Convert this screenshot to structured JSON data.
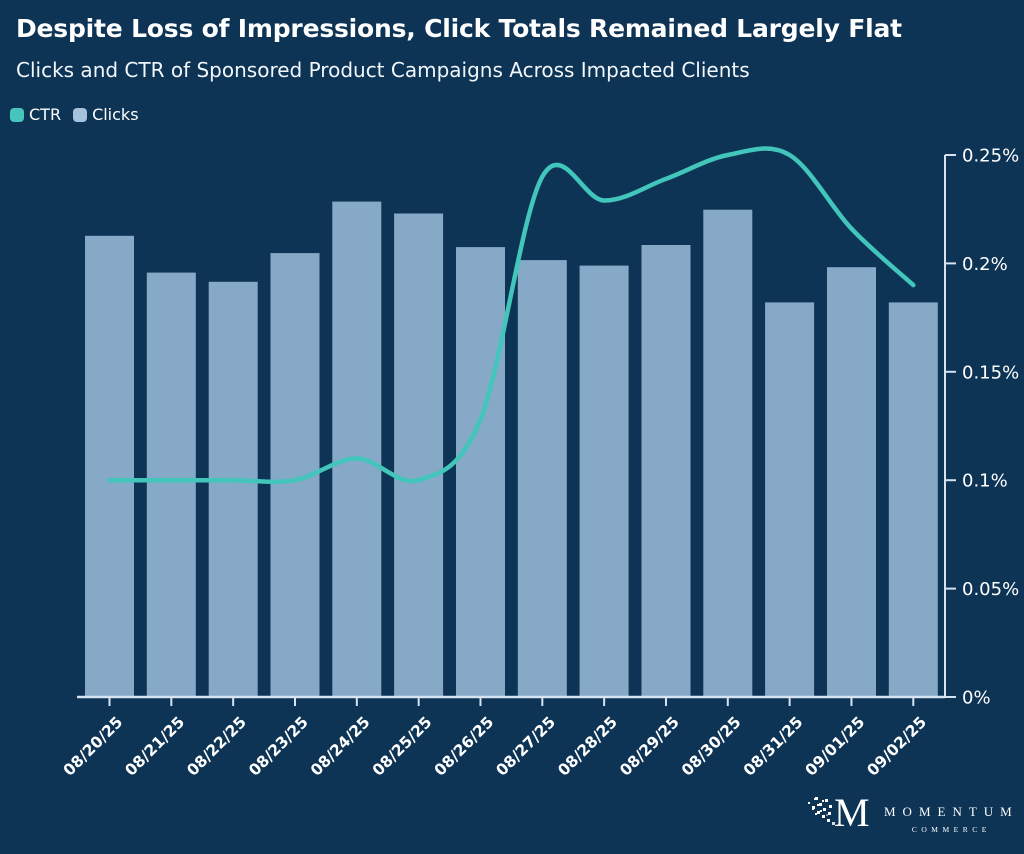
{
  "title": "Despite Loss of Impressions, Click Totals Remained Largely Flat",
  "subtitle": "Clicks and CTR of Sponsored Product Campaigns Across Impacted Clients",
  "legend": {
    "items": [
      {
        "label": "CTR",
        "color": "#45c5bb"
      },
      {
        "label": "Clicks",
        "color": "#a5c2dc"
      }
    ]
  },
  "colors": {
    "background": "#0d3355",
    "bar": "#86a9c8",
    "line": "#42c5bb",
    "axis": "#d7e4f0",
    "text": "#ffffff"
  },
  "chart_data": {
    "type": "bar+line",
    "title": "Despite Loss of Impressions, Click Totals Remained Largely Flat",
    "subtitle": "Clicks and CTR of Sponsored Product Campaigns Across Impacted Clients",
    "categories": [
      "08/20/25",
      "08/21/25",
      "08/22/25",
      "08/23/25",
      "08/24/25",
      "08/25/25",
      "08/26/25",
      "08/27/25",
      "08/28/25",
      "08/29/25",
      "08/30/25",
      "08/31/25",
      "09/01/25",
      "09/02/25"
    ],
    "series": [
      {
        "name": "Clicks",
        "type": "bar",
        "axis": "left-hidden",
        "note": "left click-count axis is not labeled in the image; values are bar heights as fraction of plot height",
        "values_relative": [
          0.851,
          0.783,
          0.766,
          0.819,
          0.914,
          0.892,
          0.83,
          0.806,
          0.796,
          0.834,
          0.899,
          0.728,
          0.793,
          0.728
        ]
      },
      {
        "name": "CTR",
        "type": "line",
        "axis": "right",
        "unit": "%",
        "values_pct": [
          0.1,
          0.1,
          0.1,
          0.1,
          0.11,
          0.1,
          0.128,
          0.24,
          0.229,
          0.239,
          0.25,
          0.25,
          0.216,
          0.19
        ]
      }
    ],
    "right_axis": {
      "min_pct": 0,
      "max_pct": 0.25,
      "tick_labels": [
        "0%",
        "0.05%",
        "0.1%",
        "0.15%",
        "0.2%",
        "0.25%"
      ]
    },
    "grid": false,
    "legend_position": "top-left"
  },
  "footer": {
    "logo_m": "M",
    "brand": "MOMENTUM",
    "brand_sub": "COMMERCE"
  }
}
